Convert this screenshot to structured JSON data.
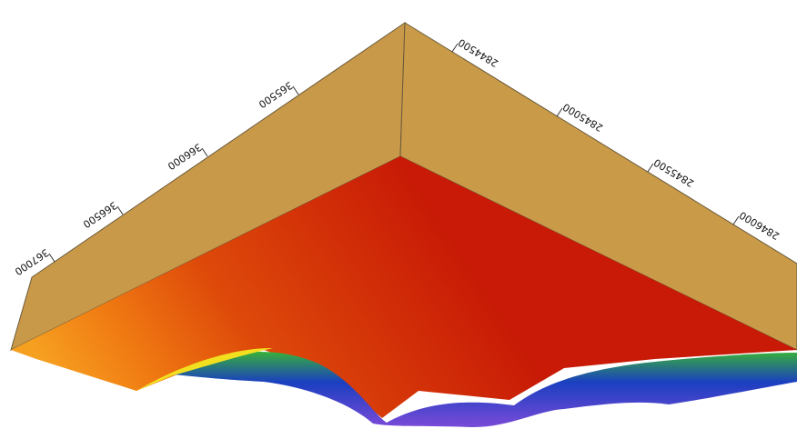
{
  "axes": {
    "x_labels": [
      "367000",
      "366500",
      "366000",
      "365500"
    ],
    "y_labels": [
      "2844500",
      "2845000",
      "2845500",
      "2846000"
    ]
  }
}
